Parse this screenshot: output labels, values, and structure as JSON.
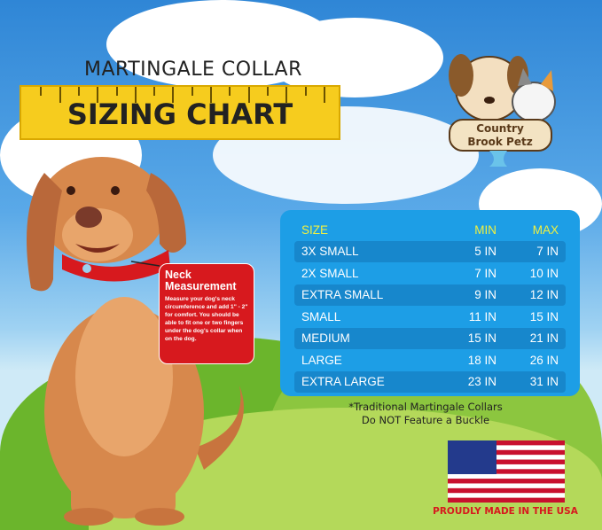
{
  "header": {
    "title_top": "MARTINGALE COLLAR",
    "title_main": "SIZING CHART"
  },
  "logo": {
    "text": "Country Brook Petz"
  },
  "neck_box": {
    "title": "Neck Measurement",
    "body": "Measure your dog's neck circumference and add 1\" - 2\" for comfort. You should be able to fit one or two fingers under the dog's collar when on the dog."
  },
  "table": {
    "headers": {
      "size": "SIZE",
      "min": "MIN",
      "max": "MAX"
    },
    "rows": [
      {
        "size": "3X SMALL",
        "min": "5 IN",
        "max": "7 IN"
      },
      {
        "size": "2X SMALL",
        "min": "7 IN",
        "max": "10 IN"
      },
      {
        "size": "EXTRA SMALL",
        "min": "9 IN",
        "max": "12 IN"
      },
      {
        "size": "SMALL",
        "min": "11 IN",
        "max": "15 IN"
      },
      {
        "size": "MEDIUM",
        "min": "15 IN",
        "max": "21 IN"
      },
      {
        "size": "LARGE",
        "min": "18 IN",
        "max": "26 IN"
      },
      {
        "size": "EXTRA LARGE",
        "min": "23 IN",
        "max": "31 IN"
      }
    ]
  },
  "note": {
    "line1": "*Traditional Martingale Collars",
    "line2": "Do NOT Feature a Buckle"
  },
  "footer": {
    "made_in": "PROUDLY MADE IN THE USA"
  },
  "colors": {
    "table_bg": "#1d9ee6",
    "header_text": "#f0f040",
    "ruler": "#f6cc1e",
    "neck_box": "#d7191e"
  }
}
